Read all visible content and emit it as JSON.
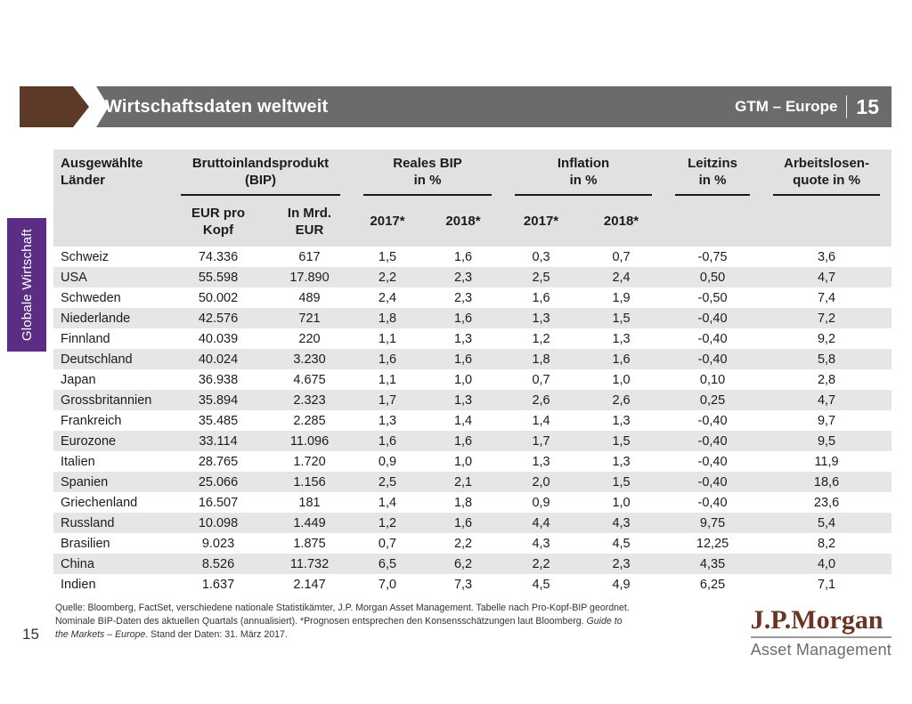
{
  "header": {
    "title": "Wirtschaftsdaten weltweit",
    "brand": "GTM – Europe",
    "page": "15"
  },
  "side_tab": {
    "label": "Globale Wirtschaft"
  },
  "table": {
    "country_header": "Ausgewählte\nLänder",
    "groups": [
      {
        "label": "Bruttoinlandsprodukt\n(BIP)"
      },
      {
        "label": "Reales BIP\nin %"
      },
      {
        "label": "Inflation\nin %"
      },
      {
        "label": "Leitzins\nin %"
      },
      {
        "label": "Arbeitslosen-\nquote in %"
      }
    ],
    "subheaders": [
      "EUR pro\nKopf",
      "In Mrd.\nEUR",
      "2017*",
      "2018*",
      "2017*",
      "2018*"
    ],
    "rows": [
      {
        "country": "Schweiz",
        "values": [
          "74.336",
          "617",
          "1,5",
          "1,6",
          "0,3",
          "0,7",
          "-0,75",
          "3,6"
        ]
      },
      {
        "country": "USA",
        "values": [
          "55.598",
          "17.890",
          "2,2",
          "2,3",
          "2,5",
          "2,4",
          "0,50",
          "4,7"
        ]
      },
      {
        "country": "Schweden",
        "values": [
          "50.002",
          "489",
          "2,4",
          "2,3",
          "1,6",
          "1,9",
          "-0,50",
          "7,4"
        ]
      },
      {
        "country": "Niederlande",
        "values": [
          "42.576",
          "721",
          "1,8",
          "1,6",
          "1,3",
          "1,5",
          "-0,40",
          "7,2"
        ]
      },
      {
        "country": "Finnland",
        "values": [
          "40.039",
          "220",
          "1,1",
          "1,3",
          "1,2",
          "1,3",
          "-0,40",
          "9,2"
        ]
      },
      {
        "country": "Deutschland",
        "values": [
          "40.024",
          "3.230",
          "1,6",
          "1,6",
          "1,8",
          "1,6",
          "-0,40",
          "5,8"
        ]
      },
      {
        "country": "Japan",
        "values": [
          "36.938",
          "4.675",
          "1,1",
          "1,0",
          "0,7",
          "1,0",
          "0,10",
          "2,8"
        ]
      },
      {
        "country": "Grossbritannien",
        "values": [
          "35.894",
          "2.323",
          "1,7",
          "1,3",
          "2,6",
          "2,6",
          "0,25",
          "4,7"
        ]
      },
      {
        "country": "Frankreich",
        "values": [
          "35.485",
          "2.285",
          "1,3",
          "1,4",
          "1,4",
          "1,3",
          "-0,40",
          "9,7"
        ]
      },
      {
        "country": "Eurozone",
        "values": [
          "33.114",
          "11.096",
          "1,6",
          "1,6",
          "1,7",
          "1,5",
          "-0,40",
          "9,5"
        ]
      },
      {
        "country": "Italien",
        "values": [
          "28.765",
          "1.720",
          "0,9",
          "1,0",
          "1,3",
          "1,3",
          "-0,40",
          "11,9"
        ]
      },
      {
        "country": "Spanien",
        "values": [
          "25.066",
          "1.156",
          "2,5",
          "2,1",
          "2,0",
          "1,5",
          "-0,40",
          "18,6"
        ]
      },
      {
        "country": "Griechenland",
        "values": [
          "16.507",
          "181",
          "1,4",
          "1,8",
          "0,9",
          "1,0",
          "-0,40",
          "23,6"
        ]
      },
      {
        "country": "Russland",
        "values": [
          "10.098",
          "1.449",
          "1,2",
          "1,6",
          "4,4",
          "4,3",
          "9,75",
          "5,4"
        ]
      },
      {
        "country": "Brasilien",
        "values": [
          "9.023",
          "1.875",
          "0,7",
          "2,2",
          "4,3",
          "4,5",
          "12,25",
          "8,2"
        ]
      },
      {
        "country": "China",
        "values": [
          "8.526",
          "11.732",
          "6,5",
          "6,2",
          "2,2",
          "2,3",
          "4,35",
          "4,0"
        ]
      },
      {
        "country": "Indien",
        "values": [
          "1.637",
          "2.147",
          "7,0",
          "7,3",
          "4,5",
          "4,9",
          "6,25",
          "7,1"
        ]
      }
    ]
  },
  "footnote": {
    "part1": "Quelle: Bloomberg, FactSet, verschiedene nationale Statistikämter, J.P. Morgan Asset Management. Tabelle nach Pro-Kopf-BIP geordnet. Nominale BIP-Daten des aktuellen Quartals (annualisiert). *Prognosen entsprechen den Konsensschätzungen laut Bloomberg. ",
    "italic": "Guide to the Markets – Europe",
    "part2": ". Stand der Daten: 31. März 2017."
  },
  "logo": {
    "brand": "J.P.Morgan",
    "sub": "Asset Management"
  },
  "footer": {
    "page_number": "15"
  },
  "colors": {
    "header_bar": "#6b6b6b",
    "header_arrow_brown": "#5d3a28",
    "side_tab_purple": "#5b2d84",
    "table_header_bg": "#e1e1e1",
    "row_stripe": "#e6e6e6",
    "logo_brown": "#6b3526"
  }
}
